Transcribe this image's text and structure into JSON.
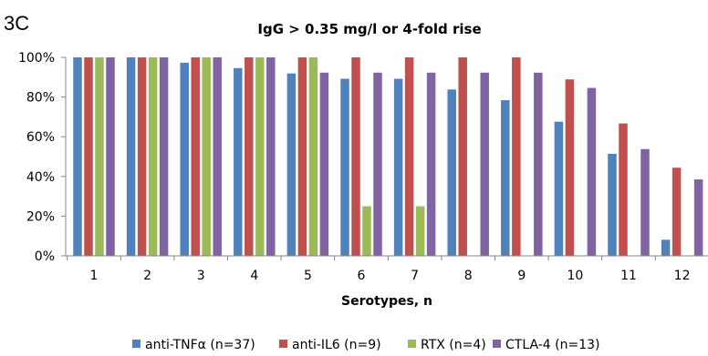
{
  "panel_label": "3C",
  "chart_data": {
    "type": "bar",
    "title": "IgG > 0.35 mg/l or 4-fold rise",
    "xlabel": "Serotypes, n",
    "ylabel": "",
    "ylim": [
      0,
      100
    ],
    "yticks": [
      0,
      20,
      40,
      60,
      80,
      100
    ],
    "ytick_labels": [
      "0%",
      "20%",
      "40%",
      "60%",
      "80%",
      "100%"
    ],
    "categories": [
      "1",
      "2",
      "3",
      "4",
      "5",
      "6",
      "7",
      "8",
      "9",
      "10",
      "11",
      "12"
    ],
    "series": [
      {
        "name": "anti-TNFα (n=37)",
        "color": "#4f81bd",
        "values": [
          100,
          100,
          97.3,
          94.6,
          91.9,
          89.2,
          89.2,
          83.8,
          78.4,
          67.6,
          51.4,
          8.1
        ]
      },
      {
        "name": "anti-IL6 (n=9)",
        "color": "#c0504d",
        "values": [
          100,
          100,
          100,
          100,
          100,
          100,
          100,
          100,
          100,
          88.9,
          66.7,
          44.4
        ]
      },
      {
        "name": "RTX (n=4)",
        "color": "#9bbb59",
        "values": [
          100,
          100,
          100,
          100,
          100,
          25,
          25,
          0,
          0,
          0,
          0,
          0
        ]
      },
      {
        "name": "CTLA-4 (n=13)",
        "color": "#8064a2",
        "values": [
          100,
          100,
          100,
          100,
          92.3,
          92.3,
          92.3,
          92.3,
          92.3,
          84.6,
          53.8,
          38.5
        ]
      }
    ],
    "legend_position": "bottom",
    "grid": false
  }
}
